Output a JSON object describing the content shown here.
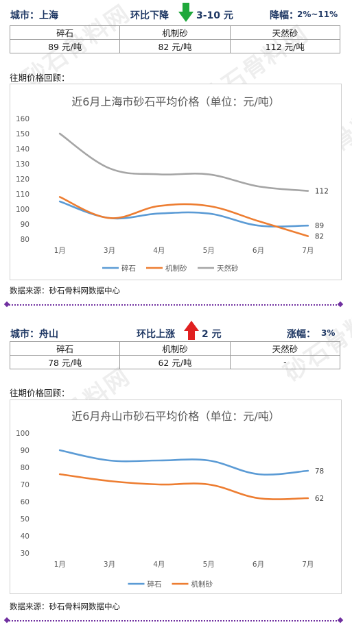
{
  "watermark": {
    "text": "砂石骨料网",
    "url": "www.cssglw.com"
  },
  "sections": [
    {
      "city_label": "城市：上海",
      "change_label": "环比下降",
      "change_value": "3-10 元",
      "pct_label": "降幅：",
      "pct_value": "2%~11%",
      "arrow": "down",
      "arrow_color": "#1fa83b",
      "table_headers": [
        "碎石",
        "机制砂",
        "天然砂"
      ],
      "table_values": [
        "89 元/吨",
        "82 元/吨",
        "112 元/吨"
      ],
      "review_label": "往期价格回顾：",
      "source_label": "数据来源：砂石骨料网数据中心"
    },
    {
      "city_label": "城市：舟山",
      "change_label": "环比上涨",
      "change_value": "2 元",
      "pct_label": "涨幅：",
      "pct_value": "3%",
      "arrow": "up",
      "arrow_color": "#e02020",
      "table_headers": [
        "碎石",
        "机制砂",
        "天然砂"
      ],
      "table_values": [
        "78 元/吨",
        "62 元/吨",
        "-"
      ],
      "review_label": "往期价格回顾：",
      "source_label": "数据来源：砂石骨料网数据中心"
    }
  ],
  "chart_data": [
    {
      "type": "line",
      "title": "近6月上海市砂石平均价格（单位：元/吨）",
      "categories": [
        "1月",
        "3月",
        "4月",
        "5月",
        "6月",
        "7月"
      ],
      "ylim": [
        80,
        160
      ],
      "yticks": [
        80,
        90,
        100,
        110,
        120,
        130,
        140,
        150,
        160
      ],
      "grid": false,
      "legend_position": "bottom",
      "series": [
        {
          "name": "碎石",
          "color": "#5b9bd5",
          "values": [
            105,
            94,
            97,
            97,
            89,
            89
          ],
          "end_label": "89"
        },
        {
          "name": "机制砂",
          "color": "#ed7d31",
          "values": [
            108,
            94,
            102,
            102,
            92,
            82
          ],
          "end_label": "82"
        },
        {
          "name": "天然砂",
          "color": "#a5a5a5",
          "values": [
            150,
            127,
            123,
            123,
            115,
            112
          ],
          "end_label": "112"
        }
      ]
    },
    {
      "type": "line",
      "title": "近6月舟山市砂石平均价格（单位：元/吨）",
      "categories": [
        "1月",
        "3月",
        "4月",
        "5月",
        "6月",
        "7月"
      ],
      "ylim": [
        30,
        100
      ],
      "yticks": [
        30,
        40,
        50,
        60,
        70,
        80,
        90,
        100
      ],
      "grid": false,
      "legend_position": "bottom",
      "series": [
        {
          "name": "碎石",
          "color": "#5b9bd5",
          "values": [
            90,
            84,
            84,
            84,
            76,
            78
          ],
          "end_label": "78"
        },
        {
          "name": "机制砂",
          "color": "#ed7d31",
          "values": [
            76,
            72,
            70,
            70,
            62,
            62
          ],
          "end_label": "62"
        }
      ]
    }
  ]
}
